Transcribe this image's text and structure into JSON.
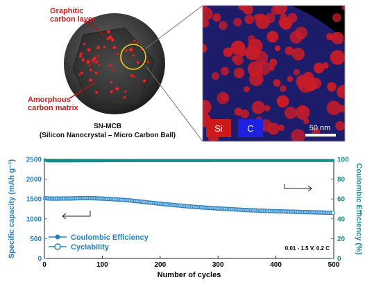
{
  "illustration": {
    "label_graphitic": "Graphitic carbon layer",
    "label_graphitic_line1": "Graphitic",
    "label_graphitic_line2": "carbon layer",
    "label_amorphous_line1": "Amorphous",
    "label_amorphous_line2": "carbon matrix",
    "caption_line1": "SN-MCB",
    "caption_line2": "(Silicon Nanocrystal – Micro Carbon Ball)"
  },
  "micrograph": {
    "legend_si": "Si",
    "legend_c": "C",
    "scale_bar": "50 nm",
    "colors": {
      "si": "#cc1a1a",
      "c": "#2020e0",
      "background": "#1a1a60"
    }
  },
  "chart_data": {
    "type": "line",
    "xlabel": "Number of cycles",
    "ylabel_left": "Specific capacity (mAh g⁻¹)",
    "ylabel_right": "Coulombic Efficiency (%)",
    "xlim": [
      0,
      500
    ],
    "ylim_left": [
      0,
      2500
    ],
    "ylim_right": [
      0,
      100
    ],
    "x_ticks": [
      0,
      100,
      200,
      300,
      400,
      500
    ],
    "y_ticks_left": [
      0,
      500,
      1000,
      1500,
      2000,
      2500
    ],
    "y_ticks_right": [
      0,
      20,
      40,
      60,
      80,
      100
    ],
    "annotation": "0.01 - 1.5 V, 0.2 C",
    "legend_placement": "bottom-left",
    "series": [
      {
        "name": "Coulombic Efficiency",
        "axis": "right",
        "color": "#1a8a8a",
        "marker": "filled-circle",
        "x": [
          1,
          5,
          10,
          20,
          50,
          100,
          150,
          200,
          250,
          300,
          350,
          400,
          450,
          500
        ],
        "y": [
          99.5,
          98.5,
          98.5,
          98.5,
          98.5,
          98.6,
          98.7,
          98.7,
          98.7,
          98.8,
          98.8,
          98.8,
          98.8,
          98.8
        ]
      },
      {
        "name": "Cyclability",
        "axis": "left",
        "color": "#2680c0",
        "marker": "open-circle",
        "x": [
          1,
          10,
          25,
          50,
          75,
          100,
          125,
          150,
          200,
          250,
          300,
          350,
          400,
          450,
          500
        ],
        "y": [
          1520,
          1510,
          1510,
          1515,
          1525,
          1510,
          1490,
          1460,
          1380,
          1310,
          1260,
          1220,
          1190,
          1170,
          1150
        ]
      }
    ]
  }
}
